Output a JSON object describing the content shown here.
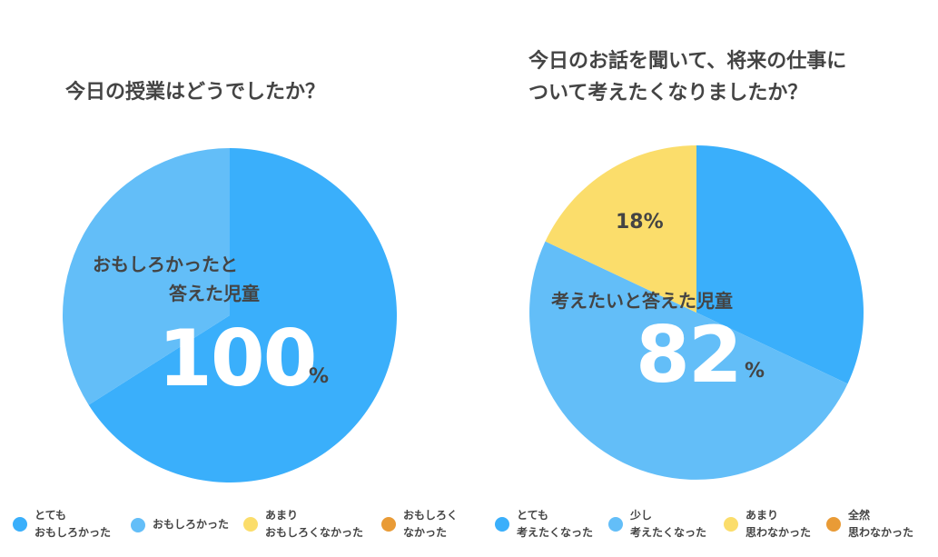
{
  "chart_data": [
    {
      "type": "pie",
      "title": "今日の授業はどうでしたか？",
      "categories": [
        "とても\nおもしろかった",
        "おもしろかった",
        "あまり\nおもしろくなかった",
        "おもしろく\nなかった"
      ],
      "values": [
        66,
        34,
        0,
        0
      ],
      "colors": [
        "#3AAFFB",
        "#63BEF8",
        "#FBDD6B",
        "#E99B36"
      ],
      "center_caption_line1": "おもしろかったと",
      "center_caption_line2": "答えた児童",
      "center_value": "100",
      "center_unit": "%",
      "slice_labels": [],
      "legend_placement": "bottom"
    },
    {
      "type": "pie",
      "title_line1": "今日のお話を聞いて、将来の仕事に",
      "title_line2": "ついて考えたくなりましたか？",
      "categories": [
        "とても\n考えたくなった",
        "少し\n考えたくなった",
        "あまり\n思わなかった",
        "全然\n思わなかった"
      ],
      "values": [
        32,
        50,
        18,
        0
      ],
      "colors": [
        "#3AAFFB",
        "#63BEF8",
        "#FBDD6B",
        "#E99B36"
      ],
      "center_caption_line1": "考えたいと答えた児童",
      "center_value": "82",
      "center_unit": "%",
      "slice_labels": [
        "18%"
      ],
      "legend_placement": "bottom"
    }
  ]
}
